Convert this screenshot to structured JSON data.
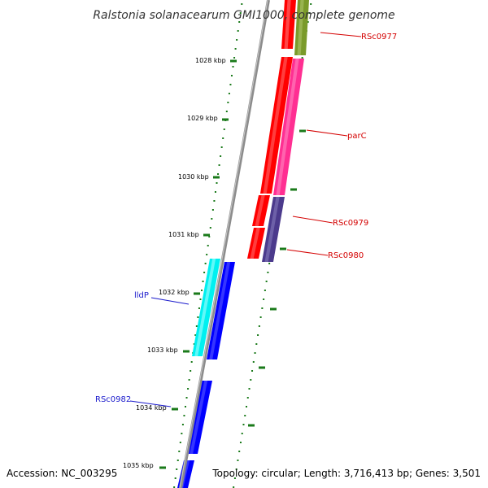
{
  "title": "Ralstonia solanacearum GMI1000, complete genome",
  "footer": {
    "accession": "Accession: NC_003295",
    "summary": "Topology: circular; Length: 3,716,413 bp; Genes: 3,501"
  },
  "colors": {
    "background": "#ffffff",
    "backbone": "#8c8c8c",
    "tick": "#1a7a1a",
    "forward_label": "#d40000",
    "reverse_label": "#1a1acc"
  },
  "ticks": [
    {
      "label": "1028 kbp"
    },
    {
      "label": "1029 kbp"
    },
    {
      "label": "1030 kbp"
    },
    {
      "label": "1031 kbp"
    },
    {
      "label": "1032 kbp"
    },
    {
      "label": "1033 kbp"
    },
    {
      "label": "1034 kbp"
    },
    {
      "label": "1035 kbp"
    }
  ],
  "forward_genes": [
    {
      "name": "RSc0977"
    },
    {
      "name": "parC"
    },
    {
      "name": "RSc0979"
    },
    {
      "name": "RSc0980"
    }
  ],
  "reverse_genes": [
    {
      "name": "lldP"
    },
    {
      "name": "RSc0982"
    }
  ]
}
